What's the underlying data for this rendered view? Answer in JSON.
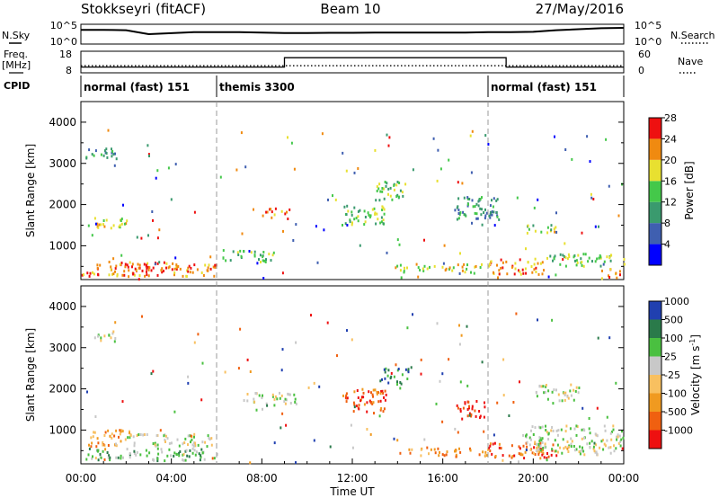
{
  "header": {
    "station": "Stokkseyri (fitACF)",
    "beam": "Beam 10",
    "date": "27/May/2016"
  },
  "noise_panel": {
    "left_label": "N.Sky",
    "right_label": "N.Search",
    "left_ticks": [
      "10^5",
      "10^0"
    ],
    "right_ticks": [
      "10^5",
      "10^0"
    ],
    "series": [
      {
        "name": "N.Sky",
        "style": "solid",
        "x_hours": [
          0,
          1,
          2,
          3,
          4,
          5,
          6,
          7,
          8,
          9,
          10,
          11,
          12,
          13,
          14,
          15,
          16,
          17,
          18,
          19,
          20,
          21,
          22,
          23,
          24
        ],
        "level": [
          0.72,
          0.72,
          0.7,
          0.5,
          0.55,
          0.6,
          0.6,
          0.6,
          0.58,
          0.56,
          0.56,
          0.57,
          0.57,
          0.58,
          0.58,
          0.58,
          0.58,
          0.58,
          0.6,
          0.6,
          0.62,
          0.7,
          0.75,
          0.8,
          0.82
        ]
      }
    ]
  },
  "freq_panel": {
    "left_label_1": "Freq.",
    "left_label_2": "[MHz]",
    "right_label": "Nave",
    "left_ticks": [
      "18",
      "8"
    ],
    "right_ticks": [
      "60",
      "0"
    ],
    "series": [
      {
        "name": "Freq.",
        "style": "dotted",
        "x_hours": [
          0,
          24
        ],
        "value_mhz": [
          11.3,
          11.3
        ]
      },
      {
        "name": "Nave",
        "style": "solid",
        "x_hours": [
          0,
          9,
          9,
          18.8,
          18.8,
          24
        ],
        "value": [
          16,
          16,
          42,
          42,
          16,
          16
        ]
      }
    ]
  },
  "cpid": {
    "label": "CPID",
    "segments": [
      {
        "label": "normal (fast) 151",
        "start_hour": 0,
        "end_hour": 6
      },
      {
        "label": "themis 3300",
        "start_hour": 6,
        "end_hour": 18
      },
      {
        "label": "normal (fast) 151",
        "start_hour": 18,
        "end_hour": 24
      }
    ]
  },
  "chart_data": [
    {
      "type": "heatmap",
      "quantity": "Power",
      "ylabel": "Slant Range [km]",
      "ylim": [
        180,
        4500
      ],
      "yticks": [
        1000,
        2000,
        3000,
        4000
      ],
      "xlim_hours": [
        0,
        24
      ],
      "colorbar": {
        "label": "Power [dB]",
        "ticks": [
          "4",
          "8",
          "12",
          "16",
          "20",
          "24",
          "28"
        ],
        "colors": [
          "#0000ff",
          "#3f5fb0",
          "#3a9a6e",
          "#44c84a",
          "#e8e030",
          "#f08a10",
          "#ee1010"
        ]
      },
      "regions": [
        {
          "t": [
            0.3,
            2.0
          ],
          "r": [
            1400,
            1700
          ],
          "level": 4
        },
        {
          "t": [
            0.2,
            1.6
          ],
          "r": [
            3050,
            3350
          ],
          "level": 2
        },
        {
          "t": [
            0.0,
            6.0
          ],
          "r": [
            250,
            600
          ],
          "level": 5
        },
        {
          "t": [
            2.0,
            3.8
          ],
          "r": [
            330,
            600
          ],
          "level": 6
        },
        {
          "t": [
            6.2,
            8.5
          ],
          "r": [
            600,
            900
          ],
          "level": 3
        },
        {
          "t": [
            8.0,
            9.2
          ],
          "r": [
            1650,
            1900
          ],
          "level": 5
        },
        {
          "t": [
            11.5,
            13.5
          ],
          "r": [
            1500,
            2000
          ],
          "level": 3
        },
        {
          "t": [
            13.0,
            14.4
          ],
          "r": [
            2100,
            2600
          ],
          "level": 3
        },
        {
          "t": [
            13.8,
            17.8
          ],
          "r": [
            350,
            550
          ],
          "level": 4
        },
        {
          "t": [
            16.5,
            18.5
          ],
          "r": [
            1500,
            2200
          ],
          "level": 2
        },
        {
          "t": [
            18.0,
            20.5
          ],
          "r": [
            300,
            700
          ],
          "level": 5
        },
        {
          "t": [
            19.5,
            21.0
          ],
          "r": [
            1300,
            1500
          ],
          "level": 3
        },
        {
          "t": [
            20.5,
            24.0
          ],
          "r": [
            500,
            800
          ],
          "level": 3
        },
        {
          "t": [
            23.0,
            24.0
          ],
          "r": [
            200,
            450
          ],
          "level": 5
        }
      ]
    },
    {
      "type": "heatmap",
      "quantity": "Velocity",
      "ylabel": "Slant Range [km]",
      "ylim": [
        180,
        4500
      ],
      "yticks": [
        1000,
        2000,
        3000,
        4000
      ],
      "xlim_hours": [
        0,
        24
      ],
      "xticks": [
        "00:00",
        "04:00",
        "08:00",
        "12:00",
        "16:00",
        "20:00",
        "00:00"
      ],
      "xlabel": "Time UT",
      "colorbar": {
        "label": "Velocity [m s",
        "label_sup": "-1",
        "label_end": "]",
        "ticks": [
          "-1000",
          "-500",
          "-100",
          "-25",
          "25",
          "100",
          "500",
          "1000"
        ],
        "colors": [
          "#ee1010",
          "#f06010",
          "#f09a20",
          "#f8c060",
          "#c8c8c8",
          "#4ac040",
          "#2a7a4a",
          "#2040b0"
        ]
      },
      "regions": [
        {
          "t": [
            0.2,
            6.0
          ],
          "r": [
            250,
            550
          ],
          "level": 5
        },
        {
          "t": [
            0.3,
            2.2
          ],
          "r": [
            600,
            1000
          ],
          "level": 2
        },
        {
          "t": [
            2.0,
            5.8
          ],
          "r": [
            600,
            900
          ],
          "level": 4
        },
        {
          "t": [
            0.5,
            1.5
          ],
          "r": [
            3100,
            3350
          ],
          "level": 4
        },
        {
          "t": [
            7.0,
            9.5
          ],
          "r": [
            1600,
            1900
          ],
          "level": 4
        },
        {
          "t": [
            11.5,
            13.5
          ],
          "r": [
            1400,
            2000
          ],
          "level": 1
        },
        {
          "t": [
            13.2,
            14.5
          ],
          "r": [
            2100,
            2500
          ],
          "level": 6
        },
        {
          "t": [
            14.0,
            18.0
          ],
          "r": [
            350,
            550
          ],
          "level": 2
        },
        {
          "t": [
            16.5,
            18.0
          ],
          "r": [
            1300,
            1700
          ],
          "level": 0
        },
        {
          "t": [
            18.0,
            21.0
          ],
          "r": [
            300,
            700
          ],
          "level": 1
        },
        {
          "t": [
            19.5,
            24.0
          ],
          "r": [
            400,
            1100
          ],
          "level": 4
        },
        {
          "t": [
            20.0,
            22.0
          ],
          "r": [
            1700,
            2100
          ],
          "level": 4
        }
      ]
    }
  ]
}
